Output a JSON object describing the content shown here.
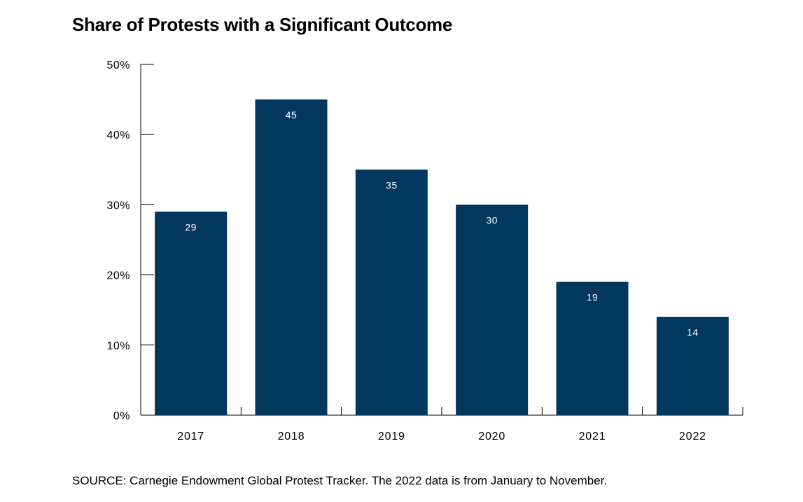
{
  "chart_data": {
    "type": "bar",
    "title": "Share of Protests with a Significant Outcome",
    "categories": [
      "2017",
      "2018",
      "2019",
      "2020",
      "2021",
      "2022"
    ],
    "values": [
      29,
      45,
      35,
      30,
      19,
      14
    ],
    "data_labels": [
      "29",
      "45",
      "35",
      "30",
      "19",
      "14"
    ],
    "ylim": [
      0,
      50
    ],
    "yticks": [
      0,
      10,
      20,
      30,
      40,
      50
    ],
    "ytick_labels": [
      "0%",
      "10%",
      "20%",
      "30%",
      "40%",
      "50%"
    ],
    "xlabel": "",
    "ylabel": "",
    "grid": false,
    "bar_color": "#02375e",
    "label_color": "#ffffff"
  },
  "source": "SOURCE: Carnegie Endowment Global Protest Tracker. The 2022 data is from January to November."
}
